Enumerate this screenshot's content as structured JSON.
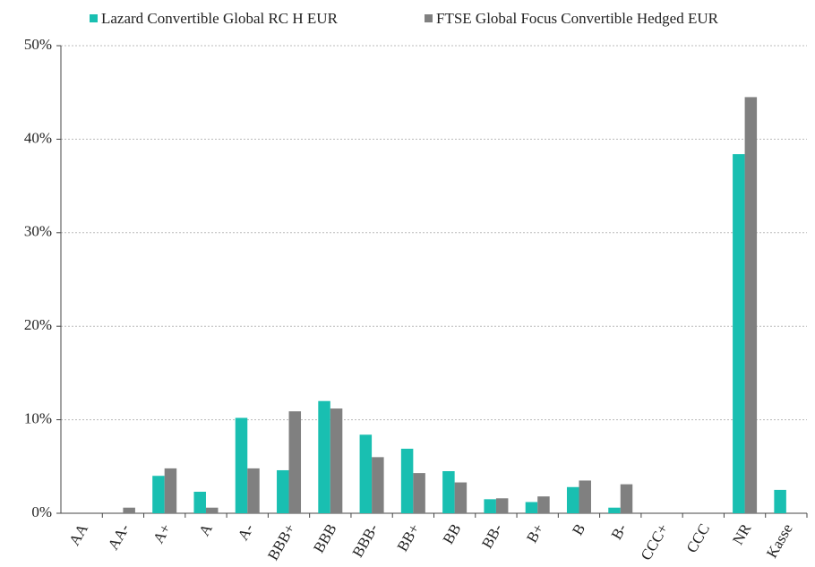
{
  "chart_data": {
    "type": "bar",
    "categories": [
      "AA",
      "AA-",
      "A+",
      "A",
      "A-",
      "BBB+",
      "BBB",
      "BBB-",
      "BB+",
      "BB",
      "BB-",
      "B+",
      "B",
      "B-",
      "CCC+",
      "CCC",
      "NR",
      "Kasse"
    ],
    "series": [
      {
        "name": "Lazard Convertible Global RC H EUR",
        "color": "#19bfb1",
        "values": [
          0,
          0,
          4.0,
          2.3,
          10.2,
          4.6,
          12.0,
          8.4,
          6.9,
          4.5,
          1.5,
          1.2,
          2.8,
          0.6,
          0,
          0,
          38.4,
          2.5
        ]
      },
      {
        "name": "FTSE Global Focus Convertible Hedged EUR",
        "color": "#808080",
        "values": [
          0,
          0.6,
          4.8,
          0.6,
          4.8,
          10.9,
          11.2,
          6.0,
          4.3,
          3.3,
          1.6,
          1.8,
          3.5,
          3.1,
          0,
          0,
          44.5,
          0
        ]
      }
    ],
    "ylim": [
      0,
      50
    ],
    "yticks": [
      {
        "value": 0,
        "label": "0%"
      },
      {
        "value": 10,
        "label": "10%"
      },
      {
        "value": 20,
        "label": "20%"
      },
      {
        "value": 30,
        "label": "30%"
      },
      {
        "value": 40,
        "label": "40%"
      },
      {
        "value": 50,
        "label": "50%"
      }
    ],
    "grid": true,
    "legend": "top"
  }
}
